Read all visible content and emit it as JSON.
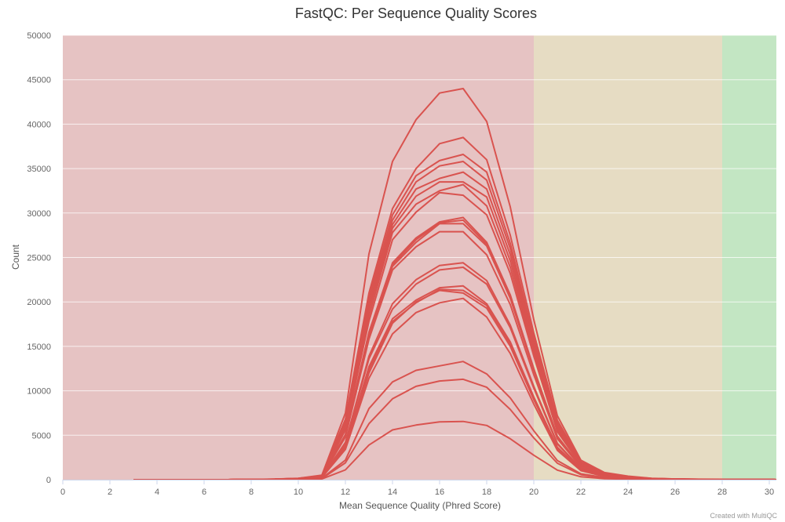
{
  "chart_data": {
    "type": "line",
    "title": "FastQC: Per Sequence Quality Scores",
    "xlabel": "Mean Sequence Quality (Phred Score)",
    "ylabel": "Count",
    "xlim": [
      0,
      30.3
    ],
    "ylim": [
      0,
      50000
    ],
    "x_ticks": [
      0,
      2,
      4,
      6,
      8,
      10,
      12,
      14,
      16,
      18,
      20,
      22,
      24,
      26,
      28,
      30
    ],
    "y_ticks": [
      0,
      5000,
      10000,
      15000,
      20000,
      25000,
      30000,
      35000,
      40000,
      45000,
      50000
    ],
    "grid": true,
    "bands": [
      {
        "from": 0,
        "to": 20,
        "color": "#e6c3c3"
      },
      {
        "from": 20,
        "to": 28,
        "color": "#e6dcc3"
      },
      {
        "from": 28,
        "to": 30.3,
        "color": "#c3e6c3"
      }
    ],
    "line_color": "#d9534f",
    "x": [
      3,
      4,
      5,
      6,
      7,
      8,
      9,
      10,
      11,
      12,
      13,
      14,
      15,
      16,
      17,
      18,
      19,
      20,
      21,
      22,
      23,
      24,
      25,
      26,
      27,
      28,
      29,
      30,
      30.3
    ],
    "series": [
      {
        "values": [
          0,
          0,
          0,
          0,
          0,
          30,
          60,
          150,
          500,
          7500,
          25400,
          35800,
          40500,
          43500,
          44000,
          40300,
          30700,
          18000,
          7200,
          2200,
          800,
          400,
          150,
          80,
          50,
          40,
          30,
          20,
          0
        ]
      },
      {
        "values": [
          0,
          0,
          0,
          0,
          0,
          25,
          55,
          140,
          460,
          6800,
          21000,
          30500,
          35000,
          37800,
          38500,
          36000,
          27500,
          16500,
          6700,
          2000,
          720,
          350,
          140,
          75,
          45,
          35,
          28,
          18,
          0
        ]
      },
      {
        "values": [
          0,
          0,
          0,
          0,
          0,
          25,
          55,
          140,
          450,
          6600,
          20500,
          29800,
          34200,
          35900,
          36600,
          34600,
          26600,
          15900,
          6400,
          1900,
          690,
          340,
          135,
          70,
          42,
          34,
          26,
          17,
          0
        ]
      },
      {
        "values": [
          0,
          0,
          0,
          0,
          0,
          25,
          50,
          130,
          440,
          6400,
          20000,
          29200,
          33500,
          35300,
          35800,
          33700,
          26000,
          15500,
          6200,
          1850,
          670,
          330,
          130,
          68,
          40,
          33,
          25,
          16,
          0
        ]
      },
      {
        "values": [
          0,
          0,
          0,
          0,
          0,
          25,
          50,
          130,
          430,
          6200,
          19500,
          28700,
          32700,
          33900,
          34600,
          32700,
          25300,
          15100,
          6000,
          1800,
          650,
          320,
          125,
          66,
          39,
          32,
          24,
          15,
          0
        ]
      },
      {
        "values": [
          0,
          0,
          0,
          0,
          0,
          22,
          48,
          125,
          420,
          6000,
          19000,
          28300,
          31900,
          33500,
          33500,
          31800,
          24600,
          14700,
          5800,
          1750,
          630,
          310,
          120,
          64,
          38,
          31,
          23,
          15,
          0
        ]
      },
      {
        "values": [
          0,
          0,
          0,
          0,
          0,
          22,
          48,
          120,
          410,
          5800,
          18400,
          27800,
          31000,
          32500,
          33200,
          30800,
          23900,
          14300,
          5600,
          1700,
          610,
          300,
          118,
          62,
          37,
          30,
          22,
          14,
          0
        ]
      },
      {
        "values": [
          0,
          0,
          0,
          0,
          0,
          20,
          45,
          120,
          400,
          5600,
          17800,
          27000,
          30100,
          32300,
          32000,
          29800,
          23200,
          13900,
          5400,
          1650,
          590,
          290,
          115,
          60,
          36,
          29,
          22,
          14,
          0
        ]
      },
      {
        "values": [
          0,
          0,
          0,
          0,
          0,
          20,
          42,
          110,
          360,
          5100,
          16600,
          24400,
          27200,
          29000,
          29500,
          26700,
          20800,
          12500,
          4900,
          1500,
          530,
          260,
          105,
          55,
          33,
          26,
          20,
          12,
          0
        ]
      },
      {
        "values": [
          0,
          0,
          0,
          0,
          0,
          20,
          42,
          110,
          355,
          5000,
          16400,
          24200,
          27000,
          28900,
          29200,
          26500,
          20600,
          12400,
          4850,
          1480,
          525,
          258,
          104,
          54,
          33,
          26,
          20,
          12,
          0
        ]
      },
      {
        "values": [
          0,
          0,
          0,
          0,
          0,
          20,
          40,
          105,
          350,
          4900,
          16200,
          24000,
          26700,
          28800,
          28800,
          26300,
          20400,
          12300,
          4800,
          1460,
          520,
          255,
          103,
          54,
          32,
          26,
          19,
          12,
          0
        ]
      },
      {
        "values": [
          0,
          0,
          0,
          0,
          0,
          18,
          40,
          100,
          340,
          4800,
          15800,
          23600,
          26200,
          27900,
          27900,
          25300,
          19700,
          11800,
          4600,
          1400,
          500,
          245,
          100,
          52,
          31,
          25,
          19,
          11,
          0
        ]
      },
      {
        "values": [
          0,
          0,
          0,
          0,
          0,
          16,
          35,
          90,
          300,
          4200,
          13900,
          19800,
          22500,
          24100,
          24400,
          22400,
          17400,
          10500,
          4100,
          1250,
          445,
          220,
          90,
          47,
          28,
          22,
          17,
          10,
          0
        ]
      },
      {
        "values": [
          0,
          0,
          0,
          0,
          0,
          16,
          34,
          88,
          295,
          4100,
          13600,
          19200,
          22000,
          23600,
          23900,
          22000,
          17100,
          10300,
          4000,
          1220,
          435,
          215,
          88,
          46,
          27,
          22,
          16,
          10,
          0
        ]
      },
      {
        "values": [
          0,
          0,
          0,
          0,
          0,
          14,
          30,
          80,
          270,
          3800,
          12700,
          18100,
          20200,
          21600,
          21800,
          19800,
          15500,
          9300,
          3650,
          1110,
          395,
          195,
          80,
          42,
          25,
          20,
          15,
          9,
          0
        ]
      },
      {
        "values": [
          0,
          0,
          0,
          0,
          0,
          14,
          30,
          80,
          265,
          3700,
          12400,
          17800,
          19900,
          21400,
          21300,
          19600,
          15300,
          9200,
          3600,
          1095,
          390,
          192,
          79,
          41,
          24,
          20,
          15,
          9,
          0
        ]
      },
      {
        "values": [
          0,
          0,
          0,
          0,
          0,
          13,
          29,
          76,
          255,
          3600,
          12000,
          17600,
          20000,
          21300,
          21000,
          19300,
          15000,
          9000,
          3500,
          1070,
          380,
          188,
          77,
          40,
          24,
          19,
          14,
          9,
          0
        ]
      },
      {
        "values": [
          0,
          0,
          0,
          0,
          0,
          13,
          28,
          72,
          245,
          3400,
          11400,
          16400,
          18800,
          19900,
          20400,
          18300,
          14200,
          8500,
          3300,
          1010,
          360,
          178,
          73,
          38,
          23,
          18,
          14,
          8,
          0
        ]
      },
      {
        "values": [
          0,
          0,
          0,
          0,
          0,
          8,
          18,
          46,
          155,
          2200,
          8000,
          11000,
          12300,
          12800,
          13300,
          11900,
          9200,
          5500,
          2150,
          660,
          235,
          116,
          48,
          25,
          15,
          12,
          9,
          5,
          0
        ]
      },
      {
        "values": [
          0,
          0,
          0,
          0,
          0,
          7,
          16,
          40,
          135,
          1900,
          6300,
          9100,
          10500,
          11100,
          11300,
          10400,
          7900,
          4700,
          1850,
          565,
          200,
          99,
          41,
          21,
          13,
          10,
          8,
          5,
          0
        ]
      },
      {
        "values": [
          0,
          0,
          0,
          0,
          0,
          4,
          9,
          22,
          75,
          1100,
          3900,
          5600,
          6150,
          6500,
          6550,
          6100,
          4600,
          2750,
          1080,
          330,
          118,
          58,
          24,
          12,
          7,
          6,
          4,
          3,
          0
        ]
      }
    ],
    "credit": "Created with MultiQC"
  }
}
